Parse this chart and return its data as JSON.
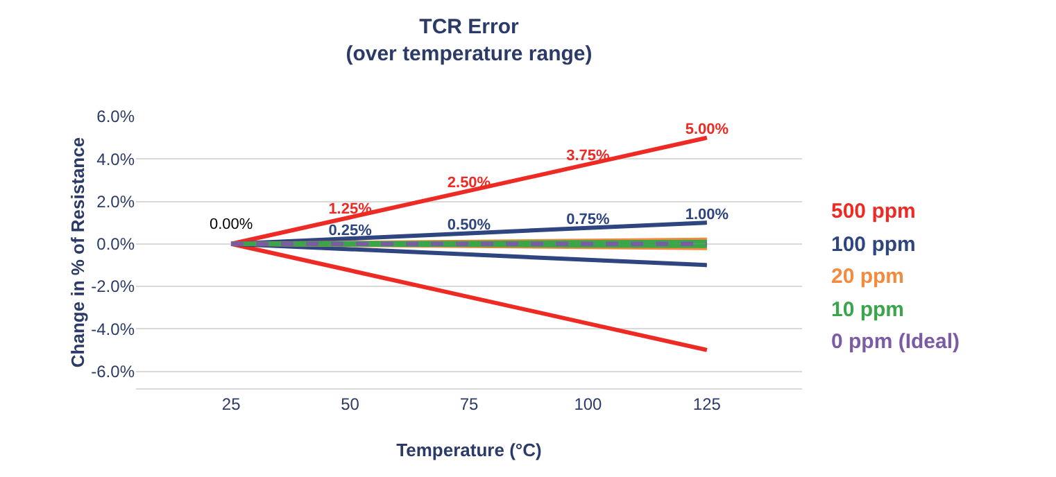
{
  "chart_data": {
    "type": "line",
    "title": "TCR Error\n(over temperature range)",
    "xlabel": "Temperature (°C)",
    "ylabel": "Change in % of Resistance",
    "x": [
      25,
      50,
      75,
      100,
      125
    ],
    "series": [
      {
        "name": "500 ppm",
        "color": "#ee2a24",
        "values": [
          0,
          1.25,
          2.5,
          3.75,
          5
        ],
        "value_labels": [
          null,
          "1.25%",
          "2.50%",
          "3.75%",
          "5.00%"
        ]
      },
      {
        "color": "#ee2a24",
        "values": [
          0,
          -1.25,
          -2.5,
          -3.75,
          -5
        ]
      },
      {
        "name": "100 ppm",
        "color": "#2e4580",
        "values": [
          0,
          0.25,
          0.5,
          0.75,
          1
        ],
        "value_labels": [
          null,
          "0.25%",
          "0.50%",
          "0.75%",
          "1.00%"
        ]
      },
      {
        "color": "#2e4580",
        "values": [
          0,
          -0.25,
          -0.5,
          -0.75,
          -1
        ]
      },
      {
        "name": "20 ppm",
        "color": "#f58a3c",
        "values": [
          0,
          0.05,
          0.1,
          0.15,
          0.2
        ]
      },
      {
        "color": "#f58a3c",
        "values": [
          0,
          -0.05,
          -0.1,
          -0.15,
          -0.2
        ]
      },
      {
        "name": "10 ppm",
        "color": "#3aa54a",
        "values": [
          0,
          0.03,
          0.05,
          0.08,
          0.1
        ]
      },
      {
        "color": "#3aa54a",
        "values": [
          0,
          -0.03,
          -0.05,
          -0.08,
          -0.1
        ]
      },
      {
        "name": "0 ppm (Ideal)",
        "color": "#7b5aa6",
        "values": [
          0,
          0,
          0,
          0,
          0
        ],
        "line_style": "dashed"
      }
    ],
    "annotations": [
      {
        "text": "0.00%",
        "x": 25,
        "y": 0
      }
    ],
    "xlim": [
      5,
      145
    ],
    "xticks": [
      25,
      50,
      75,
      100,
      125
    ],
    "ylim": [
      -6.8,
      6
    ],
    "yticks": [
      {
        "value": -6,
        "label": "-6.0%"
      },
      {
        "value": -4,
        "label": "-4.0%"
      },
      {
        "value": -2,
        "label": "-2.0%"
      },
      {
        "value": 0,
        "label": "0.0%"
      },
      {
        "value": 2,
        "label": "2.0%"
      },
      {
        "value": 4,
        "label": "4.0%"
      },
      {
        "value": 6,
        "label": "6.0%"
      }
    ],
    "grid": "y",
    "legend": "right",
    "marker": "none",
    "line_style": "solid"
  }
}
